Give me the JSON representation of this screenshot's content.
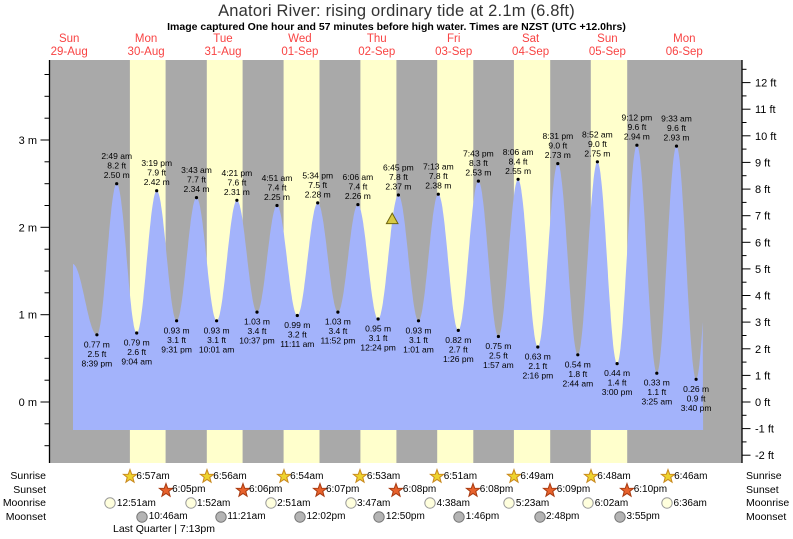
{
  "header": {
    "title": "Anatori River: rising  ordinary tide at 2.1m (6.8ft)",
    "subtitle": "Image captured One hour and 57 minutes before high water. Times are NZST (UTC +12.0hrs)"
  },
  "colors": {
    "night_band": "#a9a9a9",
    "daylight_band": "#ffffcc",
    "tide_fill": "#a3b3fb",
    "day_label_red": "#f84343",
    "sunrise_star_fill": "#eed32e",
    "sunrise_star_stroke": "#c8881e",
    "sunset_star_fill": "#e8622c",
    "sunset_star_stroke": "#a83a10",
    "moonrise_fill": "#ffffdd",
    "moonrise_stroke": "#999999",
    "moonset_fill": "#b4b4b4",
    "moonset_stroke": "#777777",
    "marker_fill": "#d8ca45",
    "marker_stroke": "#6e650f"
  },
  "chart_data": {
    "type": "area",
    "title": "Anatori River: rising  ordinary tide at 2.1m (6.8ft)",
    "x_axis_days": [
      {
        "weekday": "Sun",
        "date": "29-Aug"
      },
      {
        "weekday": "Mon",
        "date": "30-Aug"
      },
      {
        "weekday": "Tue",
        "date": "31-Aug"
      },
      {
        "weekday": "Wed",
        "date": "01-Sep"
      },
      {
        "weekday": "Thu",
        "date": "02-Sep"
      },
      {
        "weekday": "Fri",
        "date": "03-Sep"
      },
      {
        "weekday": "Sat",
        "date": "04-Sep"
      },
      {
        "weekday": "Sun",
        "date": "05-Sep"
      },
      {
        "weekday": "Mon",
        "date": "06-Sep"
      }
    ],
    "y_axis_left": {
      "unit": "m",
      "tick_labels": [
        "0 m",
        "1 m",
        "2 m",
        "3 m"
      ]
    },
    "y_axis_right": {
      "unit": "ft",
      "tick_labels": [
        "-2 ft",
        "-1 ft",
        "0 ft",
        "1 ft",
        "2 ft",
        "3 ft",
        "4 ft",
        "5 ft",
        "6 ft",
        "7 ft",
        "8 ft",
        "9 ft",
        "10 ft",
        "11 ft",
        "12 ft"
      ]
    },
    "tide_events": [
      {
        "type": "low",
        "date": "29-Aug",
        "time": "8:39 pm",
        "m": "0.77 m",
        "ft": "2.5 ft"
      },
      {
        "type": "high",
        "date": "30-Aug",
        "time": "2:49 am",
        "m": "2.50 m",
        "ft": "8.2 ft"
      },
      {
        "type": "low",
        "date": "30-Aug",
        "time": "9:04 am",
        "m": "0.79 m",
        "ft": "2.6 ft"
      },
      {
        "type": "high",
        "date": "30-Aug",
        "time": "3:19 pm",
        "m": "2.42 m",
        "ft": "7.9 ft"
      },
      {
        "type": "low",
        "date": "30-Aug",
        "time": "9:31 pm",
        "m": "0.93 m",
        "ft": "3.1 ft"
      },
      {
        "type": "high",
        "date": "31-Aug",
        "time": "3:43 am",
        "m": "2.34 m",
        "ft": "7.7 ft"
      },
      {
        "type": "low",
        "date": "31-Aug",
        "time": "10:01 am",
        "m": "0.93 m",
        "ft": "3.1 ft"
      },
      {
        "type": "high",
        "date": "31-Aug",
        "time": "4:21 pm",
        "m": "2.31 m",
        "ft": "7.6 ft"
      },
      {
        "type": "low",
        "date": "31-Aug",
        "time": "10:37 pm",
        "m": "1.03 m",
        "ft": "3.4 ft"
      },
      {
        "type": "high",
        "date": "01-Sep",
        "time": "4:51 am",
        "m": "2.25 m",
        "ft": "7.4 ft"
      },
      {
        "type": "low",
        "date": "01-Sep",
        "time": "11:11 am",
        "m": "0.99 m",
        "ft": "3.2 ft"
      },
      {
        "type": "high",
        "date": "01-Sep",
        "time": "5:34 pm",
        "m": "2.28 m",
        "ft": "7.5 ft"
      },
      {
        "type": "low",
        "date": "01-Sep",
        "time": "11:52 pm",
        "m": "1.03 m",
        "ft": "3.4 ft"
      },
      {
        "type": "high",
        "date": "02-Sep",
        "time": "6:06 am",
        "m": "2.26 m",
        "ft": "7.4 ft"
      },
      {
        "type": "low",
        "date": "02-Sep",
        "time": "12:24 pm",
        "m": "0.95 m",
        "ft": "3.1 ft"
      },
      {
        "type": "high",
        "date": "02-Sep",
        "time": "6:45 pm",
        "m": "2.37 m",
        "ft": "7.8 ft"
      },
      {
        "type": "low",
        "date": "03-Sep",
        "time": "1:01 am",
        "m": "0.93 m",
        "ft": "3.1 ft"
      },
      {
        "type": "high",
        "date": "03-Sep",
        "time": "7:13 am",
        "m": "2.38 m",
        "ft": "7.8 ft"
      },
      {
        "type": "low",
        "date": "03-Sep",
        "time": "1:26 pm",
        "m": "0.82 m",
        "ft": "2.7 ft"
      },
      {
        "type": "high",
        "date": "03-Sep",
        "time": "7:43 pm",
        "m": "2.53 m",
        "ft": "8.3 ft"
      },
      {
        "type": "low",
        "date": "04-Sep",
        "time": "1:57 am",
        "m": "0.75 m",
        "ft": "2.5 ft"
      },
      {
        "type": "high",
        "date": "04-Sep",
        "time": "8:06 am",
        "m": "2.55 m",
        "ft": "8.4 ft"
      },
      {
        "type": "low",
        "date": "04-Sep",
        "time": "2:16 pm",
        "m": "0.63 m",
        "ft": "2.1 ft"
      },
      {
        "type": "high",
        "date": "04-Sep",
        "time": "8:31 pm",
        "m": "2.73 m",
        "ft": "9.0 ft"
      },
      {
        "type": "low",
        "date": "05-Sep",
        "time": "2:44 am",
        "m": "0.54 m",
        "ft": "1.8 ft"
      },
      {
        "type": "high",
        "date": "05-Sep",
        "time": "8:52 am",
        "m": "2.75 m",
        "ft": "9.0 ft"
      },
      {
        "type": "low",
        "date": "05-Sep",
        "time": "3:00 pm",
        "m": "0.44 m",
        "ft": "1.4 ft"
      },
      {
        "type": "high",
        "date": "05-Sep",
        "time": "9:12 pm",
        "m": "2.94 m",
        "ft": "9.6 ft"
      },
      {
        "type": "low",
        "date": "06-Sep",
        "time": "3:25 am",
        "m": "0.33 m",
        "ft": "1.1 ft"
      },
      {
        "type": "high",
        "date": "06-Sep",
        "time": "9:33 am",
        "m": "2.93 m",
        "ft": "9.6 ft"
      },
      {
        "type": "low",
        "date": "06-Sep",
        "time": "3:40 pm",
        "m": "0.26 m",
        "ft": "0.9 ft"
      }
    ],
    "current_tide_marker": {
      "date": "02-Sep",
      "time": "4:48 pm",
      "height_m": 2.1
    }
  },
  "almanac": {
    "rows": [
      {
        "id": "sunrise",
        "label": "Sunrise",
        "events": [
          {
            "date": "30-Aug",
            "time": "6:57am"
          },
          {
            "date": "31-Aug",
            "time": "6:56am"
          },
          {
            "date": "01-Sep",
            "time": "6:54am"
          },
          {
            "date": "02-Sep",
            "time": "6:53am"
          },
          {
            "date": "03-Sep",
            "time": "6:51am"
          },
          {
            "date": "04-Sep",
            "time": "6:49am"
          },
          {
            "date": "05-Sep",
            "time": "6:48am"
          },
          {
            "date": "06-Sep",
            "time": "6:46am"
          }
        ]
      },
      {
        "id": "sunset",
        "label": "Sunset",
        "events": [
          {
            "date": "30-Aug",
            "time": "6:05pm"
          },
          {
            "date": "31-Aug",
            "time": "6:06pm"
          },
          {
            "date": "01-Sep",
            "time": "6:07pm"
          },
          {
            "date": "02-Sep",
            "time": "6:08pm"
          },
          {
            "date": "03-Sep",
            "time": "6:08pm"
          },
          {
            "date": "04-Sep",
            "time": "6:09pm"
          },
          {
            "date": "05-Sep",
            "time": "6:10pm"
          }
        ]
      },
      {
        "id": "moonrise",
        "label": "Moonrise",
        "events": [
          {
            "date": "30-Aug",
            "time": "12:51am"
          },
          {
            "date": "31-Aug",
            "time": "1:52am"
          },
          {
            "date": "01-Sep",
            "time": "2:51am"
          },
          {
            "date": "02-Sep",
            "time": "3:47am"
          },
          {
            "date": "03-Sep",
            "time": "4:38am"
          },
          {
            "date": "04-Sep",
            "time": "5:23am"
          },
          {
            "date": "05-Sep",
            "time": "6:02am"
          },
          {
            "date": "06-Sep",
            "time": "6:36am"
          }
        ]
      },
      {
        "id": "moonset",
        "label": "Moonset",
        "events": [
          {
            "date": "30-Aug",
            "time": "10:46am"
          },
          {
            "date": "31-Aug",
            "time": "11:21am"
          },
          {
            "date": "01-Sep",
            "time": "12:02pm"
          },
          {
            "date": "02-Sep",
            "time": "12:50pm"
          },
          {
            "date": "03-Sep",
            "time": "1:46pm"
          },
          {
            "date": "04-Sep",
            "time": "2:48pm"
          },
          {
            "date": "05-Sep",
            "time": "3:55pm"
          }
        ]
      }
    ],
    "moon_phase": {
      "date": "30-Aug",
      "label": "Last Quarter | 7:13pm"
    }
  }
}
